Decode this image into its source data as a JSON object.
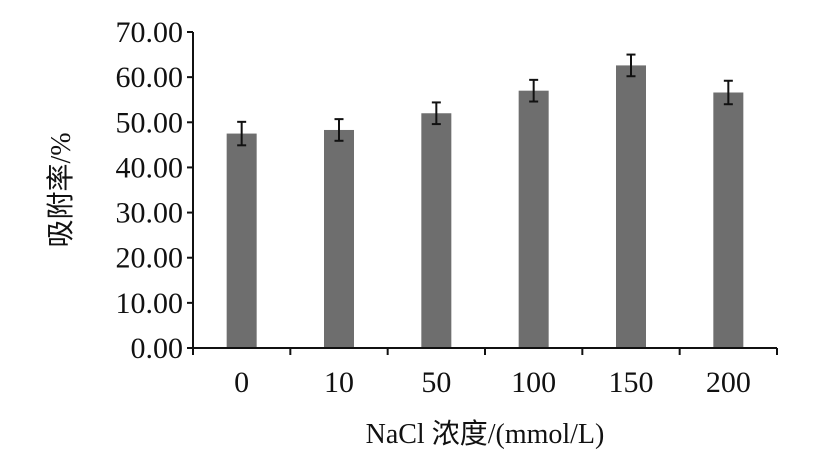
{
  "chart_data": {
    "type": "bar",
    "categories": [
      "0",
      "10",
      "50",
      "100",
      "150",
      "200"
    ],
    "values": [
      47.5,
      48.3,
      52.0,
      57.0,
      62.6,
      56.6
    ],
    "errors": [
      2.6,
      2.4,
      2.4,
      2.4,
      2.4,
      2.6
    ],
    "xlabel": "NaCl 浓度/(mmol/L)",
    "ylabel": "吸附率/%",
    "ylim": [
      0,
      70
    ],
    "yticks": [
      "0.00",
      "10.00",
      "20.00",
      "30.00",
      "40.00",
      "50.00",
      "60.00",
      "70.00"
    ],
    "bar_color": "#6e6e6e",
    "grid": false,
    "legend": "none"
  }
}
